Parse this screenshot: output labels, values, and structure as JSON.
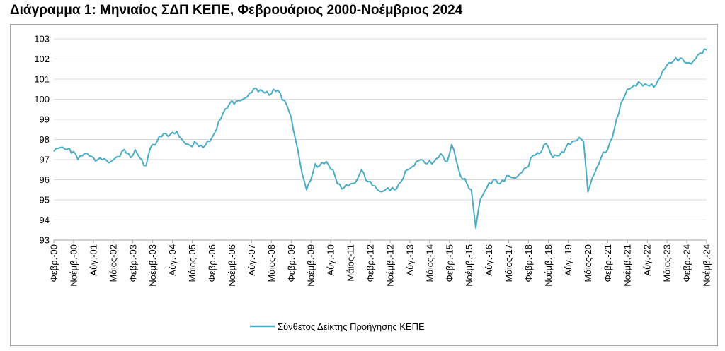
{
  "title": "Διάγραμμα 1: Μηνιαίος ΣΔΠ ΚΕΠΕ, Φεβρουάριος 2000-Νοέμβριος 2024",
  "colors": {
    "line": "#4bacc6",
    "grid": "#d9d9d9",
    "axis": "#a6a6a6"
  },
  "chart_data": {
    "type": "line",
    "title": "Διάγραμμα 1: Μηνιαίος ΣΔΠ ΚΕΠΕ, Φεβρουάριος 2000-Νοέμβριος 2024",
    "xlabel": "",
    "ylabel": "",
    "ylim": [
      93,
      103
    ],
    "yticks": [
      93,
      94,
      95,
      96,
      97,
      98,
      99,
      100,
      101,
      102,
      103
    ],
    "grid": true,
    "legend_position": "bottom-center",
    "x_start": "2000-02",
    "x_end": "2024-11",
    "xtick_labels": [
      "Φεβρ.-00",
      "Νοέμβ.-00",
      "Αύγ.-01",
      "Μάιος-02",
      "Φεβρ.-03",
      "Νοέμβ.-03",
      "Αύγ.-04",
      "Μάιος-05",
      "Φεβρ.-06",
      "Νοέμβ.-06",
      "Αύγ.-07",
      "Μάιος-08",
      "Φεβρ.-09",
      "Νοέμβ.-09",
      "Αύγ.-10",
      "Μάιος-11",
      "Φεβρ.-12",
      "Νοέμβ.-12",
      "Αύγ.-13",
      "Μάιος-14",
      "Φεβρ.-15",
      "Νοέμβ.-15",
      "Αύγ.-16",
      "Μάιος-17",
      "Φεβρ.-18",
      "Νοέμβ.-18",
      "Αύγ.-19",
      "Μάιος-20",
      "Φεβρ.-21",
      "Νοέμβ.-21",
      "Αύγ.-22",
      "Μάιος-23",
      "Φεβρ.-24",
      "Νοέμβ.-24"
    ],
    "series": [
      {
        "name": "Σύνθετος Δείκτης Προήγησης ΚΕΠΕ",
        "points": [
          [
            "2000-02",
            97.4
          ],
          [
            "2000-05",
            97.6
          ],
          [
            "2000-08",
            97.5
          ],
          [
            "2000-11",
            97.4
          ],
          [
            "2001-01",
            97.0
          ],
          [
            "2001-04",
            97.3
          ],
          [
            "2001-08",
            97.1
          ],
          [
            "2001-10",
            97.0
          ],
          [
            "2002-01",
            97.05
          ],
          [
            "2002-04",
            96.9
          ],
          [
            "2002-07",
            97.15
          ],
          [
            "2002-10",
            97.5
          ],
          [
            "2003-01",
            97.1
          ],
          [
            "2003-03",
            97.5
          ],
          [
            "2003-05",
            97.1
          ],
          [
            "2003-08",
            96.7
          ],
          [
            "2003-10",
            97.6
          ],
          [
            "2004-01",
            97.9
          ],
          [
            "2004-04",
            98.3
          ],
          [
            "2004-07",
            98.25
          ],
          [
            "2004-10",
            98.4
          ],
          [
            "2005-01",
            97.9
          ],
          [
            "2005-04",
            97.7
          ],
          [
            "2005-07",
            97.8
          ],
          [
            "2005-10",
            97.6
          ],
          [
            "2006-01",
            97.9
          ],
          [
            "2006-04",
            98.5
          ],
          [
            "2006-07",
            99.3
          ],
          [
            "2006-10",
            99.8
          ],
          [
            "2007-01",
            99.9
          ],
          [
            "2007-04",
            100.0
          ],
          [
            "2007-07",
            100.3
          ],
          [
            "2007-10",
            100.55
          ],
          [
            "2008-01",
            100.4
          ],
          [
            "2008-04",
            100.2
          ],
          [
            "2008-06",
            100.5
          ],
          [
            "2008-09",
            100.3
          ],
          [
            "2008-12",
            99.7
          ],
          [
            "2009-02",
            99.1
          ],
          [
            "2009-05",
            97.5
          ],
          [
            "2009-07",
            96.3
          ],
          [
            "2009-09",
            95.5
          ],
          [
            "2009-11",
            96.0
          ],
          [
            "2010-01",
            96.8
          ],
          [
            "2010-03",
            96.7
          ],
          [
            "2010-06",
            96.9
          ],
          [
            "2010-09",
            96.5
          ],
          [
            "2010-11",
            95.8
          ],
          [
            "2011-02",
            95.6
          ],
          [
            "2011-05",
            95.8
          ],
          [
            "2011-08",
            96.0
          ],
          [
            "2011-10",
            96.5
          ],
          [
            "2012-01",
            95.9
          ],
          [
            "2012-04",
            95.7
          ],
          [
            "2012-07",
            95.4
          ],
          [
            "2012-10",
            95.6
          ],
          [
            "2013-01",
            95.5
          ],
          [
            "2013-04",
            95.9
          ],
          [
            "2013-07",
            96.5
          ],
          [
            "2013-10",
            96.7
          ],
          [
            "2014-01",
            97.0
          ],
          [
            "2014-04",
            96.8
          ],
          [
            "2014-07",
            96.9
          ],
          [
            "2014-10",
            97.3
          ],
          [
            "2015-01",
            96.9
          ],
          [
            "2015-03",
            97.75
          ],
          [
            "2015-05",
            97.0
          ],
          [
            "2015-07",
            96.2
          ],
          [
            "2015-10",
            95.8
          ],
          [
            "2015-12",
            95.5
          ],
          [
            "2016-02",
            93.6
          ],
          [
            "2016-04",
            95.0
          ],
          [
            "2016-07",
            95.6
          ],
          [
            "2016-10",
            96.0
          ],
          [
            "2017-01",
            95.8
          ],
          [
            "2017-04",
            96.2
          ],
          [
            "2017-07",
            96.1
          ],
          [
            "2017-10",
            96.3
          ],
          [
            "2018-01",
            96.6
          ],
          [
            "2018-04",
            97.2
          ],
          [
            "2018-07",
            97.3
          ],
          [
            "2018-10",
            97.8
          ],
          [
            "2019-01",
            97.1
          ],
          [
            "2019-04",
            97.2
          ],
          [
            "2019-07",
            97.6
          ],
          [
            "2019-10",
            97.9
          ],
          [
            "2020-01",
            98.1
          ],
          [
            "2020-03",
            97.9
          ],
          [
            "2020-05",
            95.4
          ],
          [
            "2020-08",
            96.3
          ],
          [
            "2020-11",
            97.1
          ],
          [
            "2021-02",
            97.5
          ],
          [
            "2021-05",
            98.5
          ],
          [
            "2021-08",
            99.8
          ],
          [
            "2021-11",
            100.5
          ],
          [
            "2022-02",
            100.7
          ],
          [
            "2022-05",
            100.8
          ],
          [
            "2022-08",
            100.7
          ],
          [
            "2022-11",
            100.6
          ],
          [
            "2023-02",
            101.1
          ],
          [
            "2023-05",
            101.7
          ],
          [
            "2023-08",
            101.9
          ],
          [
            "2023-11",
            102.05
          ],
          [
            "2024-02",
            101.8
          ],
          [
            "2024-05",
            101.9
          ],
          [
            "2024-08",
            102.3
          ],
          [
            "2024-10",
            102.5
          ],
          [
            "2024-11",
            102.45
          ]
        ]
      }
    ]
  },
  "legend": {
    "label": "Σύνθετος Δείκτης Προήγησης ΚΕΠΕ"
  }
}
